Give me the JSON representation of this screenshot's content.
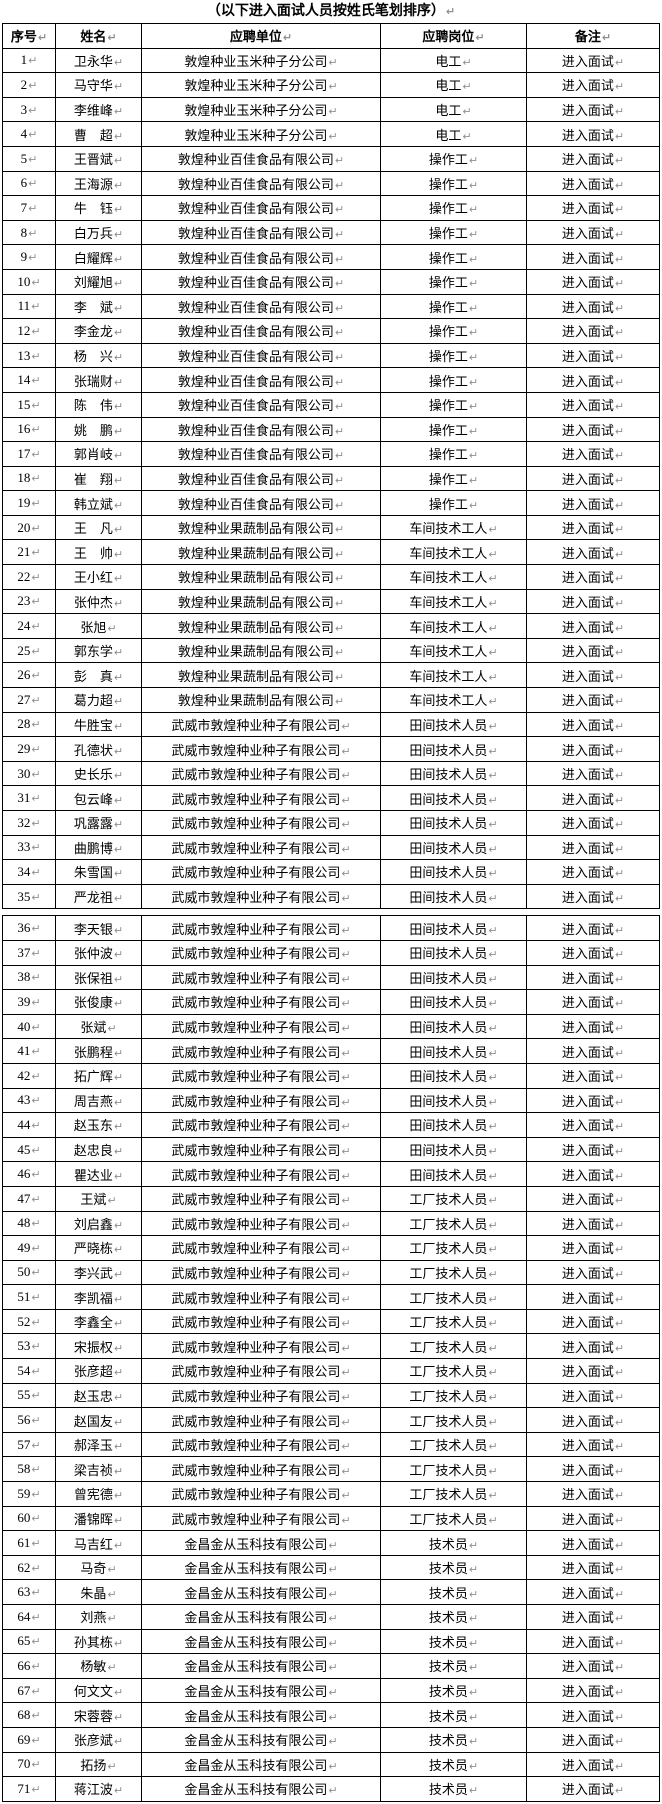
{
  "page": {
    "title": "（以下进入面试人员按姓氏笔划排序）",
    "return_mark": "↵"
  },
  "table": {
    "headers": [
      "序号",
      "姓名",
      "应聘单位",
      "应聘岗位",
      "备注"
    ],
    "page_break_after_row": 35,
    "rows": [
      [
        "1",
        "卫永华",
        "敦煌种业玉米种子分公司",
        "电工",
        "进入面试"
      ],
      [
        "2",
        "马守华",
        "敦煌种业玉米种子分公司",
        "电工",
        "进入面试"
      ],
      [
        "3",
        "李维峰",
        "敦煌种业玉米种子分公司",
        "电工",
        "进入面试"
      ],
      [
        "4",
        "曹　超",
        "敦煌种业玉米种子分公司",
        "电工",
        "进入面试"
      ],
      [
        "5",
        "王晋斌",
        "敦煌种业百佳食品有限公司",
        "操作工",
        "进入面试"
      ],
      [
        "6",
        "王海源",
        "敦煌种业百佳食品有限公司",
        "操作工",
        "进入面试"
      ],
      [
        "7",
        "牛　钰",
        "敦煌种业百佳食品有限公司",
        "操作工",
        "进入面试"
      ],
      [
        "8",
        "白万兵",
        "敦煌种业百佳食品有限公司",
        "操作工",
        "进入面试"
      ],
      [
        "9",
        "白耀辉",
        "敦煌种业百佳食品有限公司",
        "操作工",
        "进入面试"
      ],
      [
        "10",
        "刘耀旭",
        "敦煌种业百佳食品有限公司",
        "操作工",
        "进入面试"
      ],
      [
        "11",
        "李　斌",
        "敦煌种业百佳食品有限公司",
        "操作工",
        "进入面试"
      ],
      [
        "12",
        "李金龙",
        "敦煌种业百佳食品有限公司",
        "操作工",
        "进入面试"
      ],
      [
        "13",
        "杨　兴",
        "敦煌种业百佳食品有限公司",
        "操作工",
        "进入面试"
      ],
      [
        "14",
        "张瑞财",
        "敦煌种业百佳食品有限公司",
        "操作工",
        "进入面试"
      ],
      [
        "15",
        "陈　伟",
        "敦煌种业百佳食品有限公司",
        "操作工",
        "进入面试"
      ],
      [
        "16",
        "姚　鹏",
        "敦煌种业百佳食品有限公司",
        "操作工",
        "进入面试"
      ],
      [
        "17",
        "郭肖岐",
        "敦煌种业百佳食品有限公司",
        "操作工",
        "进入面试"
      ],
      [
        "18",
        "崔　翔",
        "敦煌种业百佳食品有限公司",
        "操作工",
        "进入面试"
      ],
      [
        "19",
        "韩立斌",
        "敦煌种业百佳食品有限公司",
        "操作工",
        "进入面试"
      ],
      [
        "20",
        "王　凡",
        "敦煌种业果蔬制品有限公司",
        "车间技术工人",
        "进入面试"
      ],
      [
        "21",
        "王　帅",
        "敦煌种业果蔬制品有限公司",
        "车间技术工人",
        "进入面试"
      ],
      [
        "22",
        "王小红",
        "敦煌种业果蔬制品有限公司",
        "车间技术工人",
        "进入面试"
      ],
      [
        "23",
        "张仲杰",
        "敦煌种业果蔬制品有限公司",
        "车间技术工人",
        "进入面试"
      ],
      [
        "24",
        "张旭",
        "敦煌种业果蔬制品有限公司",
        "车间技术工人",
        "进入面试"
      ],
      [
        "25",
        "郭东学",
        "敦煌种业果蔬制品有限公司",
        "车间技术工人",
        "进入面试"
      ],
      [
        "26",
        "彭　真",
        "敦煌种业果蔬制品有限公司",
        "车间技术工人",
        "进入面试"
      ],
      [
        "27",
        "葛力超",
        "敦煌种业果蔬制品有限公司",
        "车间技术工人",
        "进入面试"
      ],
      [
        "28",
        "牛胜宝",
        "武威市敦煌种业种子有限公司",
        "田间技术人员",
        "进入面试"
      ],
      [
        "29",
        "孔德状",
        "武威市敦煌种业种子有限公司",
        "田间技术人员",
        "进入面试"
      ],
      [
        "30",
        "史长乐",
        "武威市敦煌种业种子有限公司",
        "田间技术人员",
        "进入面试"
      ],
      [
        "31",
        "包云峰",
        "武威市敦煌种业种子有限公司",
        "田间技术人员",
        "进入面试"
      ],
      [
        "32",
        "巩露露",
        "武威市敦煌种业种子有限公司",
        "田间技术人员",
        "进入面试"
      ],
      [
        "33",
        "曲鹏博",
        "武威市敦煌种业种子有限公司",
        "田间技术人员",
        "进入面试"
      ],
      [
        "34",
        "朱雪国",
        "武威市敦煌种业种子有限公司",
        "田间技术人员",
        "进入面试"
      ],
      [
        "35",
        "严龙祖",
        "武威市敦煌种业种子有限公司",
        "田间技术人员",
        "进入面试"
      ],
      [
        "36",
        "李天银",
        "武威市敦煌种业种子有限公司",
        "田间技术人员",
        "进入面试"
      ],
      [
        "37",
        "张仲波",
        "武威市敦煌种业种子有限公司",
        "田间技术人员",
        "进入面试"
      ],
      [
        "38",
        "张保祖",
        "武威市敦煌种业种子有限公司",
        "田间技术人员",
        "进入面试"
      ],
      [
        "39",
        "张俊康",
        "武威市敦煌种业种子有限公司",
        "田间技术人员",
        "进入面试"
      ],
      [
        "40",
        "张斌",
        "武威市敦煌种业种子有限公司",
        "田间技术人员",
        "进入面试"
      ],
      [
        "41",
        "张鹏程",
        "武威市敦煌种业种子有限公司",
        "田间技术人员",
        "进入面试"
      ],
      [
        "42",
        "拓广辉",
        "武威市敦煌种业种子有限公司",
        "田间技术人员",
        "进入面试"
      ],
      [
        "43",
        "周吉燕",
        "武威市敦煌种业种子有限公司",
        "田间技术人员",
        "进入面试"
      ],
      [
        "44",
        "赵玉东",
        "武威市敦煌种业种子有限公司",
        "田间技术人员",
        "进入面试"
      ],
      [
        "45",
        "赵忠良",
        "武威市敦煌种业种子有限公司",
        "田间技术人员",
        "进入面试"
      ],
      [
        "46",
        "瞿达业",
        "武威市敦煌种业种子有限公司",
        "田间技术人员",
        "进入面试"
      ],
      [
        "47",
        "王斌",
        "武威市敦煌种业种子有限公司",
        "工厂技术人员",
        "进入面试"
      ],
      [
        "48",
        "刘启鑫",
        "武威市敦煌种业种子有限公司",
        "工厂技术人员",
        "进入面试"
      ],
      [
        "49",
        "严晓栋",
        "武威市敦煌种业种子有限公司",
        "工厂技术人员",
        "进入面试"
      ],
      [
        "50",
        "李兴武",
        "武威市敦煌种业种子有限公司",
        "工厂技术人员",
        "进入面试"
      ],
      [
        "51",
        "李凯福",
        "武威市敦煌种业种子有限公司",
        "工厂技术人员",
        "进入面试"
      ],
      [
        "52",
        "李鑫全",
        "武威市敦煌种业种子有限公司",
        "工厂技术人员",
        "进入面试"
      ],
      [
        "53",
        "宋振权",
        "武威市敦煌种业种子有限公司",
        "工厂技术人员",
        "进入面试"
      ],
      [
        "54",
        "张彦超",
        "武威市敦煌种业种子有限公司",
        "工厂技术人员",
        "进入面试"
      ],
      [
        "55",
        "赵玉忠",
        "武威市敦煌种业种子有限公司",
        "工厂技术人员",
        "进入面试"
      ],
      [
        "56",
        "赵国友",
        "武威市敦煌种业种子有限公司",
        "工厂技术人员",
        "进入面试"
      ],
      [
        "57",
        "郝泽玉",
        "武威市敦煌种业种子有限公司",
        "工厂技术人员",
        "进入面试"
      ],
      [
        "58",
        "梁吉祯",
        "武威市敦煌种业种子有限公司",
        "工厂技术人员",
        "进入面试"
      ],
      [
        "59",
        "曾宪德",
        "武威市敦煌种业种子有限公司",
        "工厂技术人员",
        "进入面试"
      ],
      [
        "60",
        "潘锦晖",
        "武威市敦煌种业种子有限公司",
        "工厂技术人员",
        "进入面试"
      ],
      [
        "61",
        "马吉红",
        "金昌金从玉科技有限公司",
        "技术员",
        "进入面试"
      ],
      [
        "62",
        "马奇",
        "金昌金从玉科技有限公司",
        "技术员",
        "进入面试"
      ],
      [
        "63",
        "朱晶",
        "金昌金从玉科技有限公司",
        "技术员",
        "进入面试"
      ],
      [
        "64",
        "刘燕",
        "金昌金从玉科技有限公司",
        "技术员",
        "进入面试"
      ],
      [
        "65",
        "孙其栋",
        "金昌金从玉科技有限公司",
        "技术员",
        "进入面试"
      ],
      [
        "66",
        "杨敏",
        "金昌金从玉科技有限公司",
        "技术员",
        "进入面试"
      ],
      [
        "67",
        "何文文",
        "金昌金从玉科技有限公司",
        "技术员",
        "进入面试"
      ],
      [
        "68",
        "宋蓉蓉",
        "金昌金从玉科技有限公司",
        "技术员",
        "进入面试"
      ],
      [
        "69",
        "张彦斌",
        "金昌金从玉科技有限公司",
        "技术员",
        "进入面试"
      ],
      [
        "70",
        "拓扬",
        "金昌金从玉科技有限公司",
        "技术员",
        "进入面试"
      ],
      [
        "71",
        "蒋江波",
        "金昌金从玉科技有限公司",
        "技术员",
        "进入面试"
      ]
    ]
  }
}
